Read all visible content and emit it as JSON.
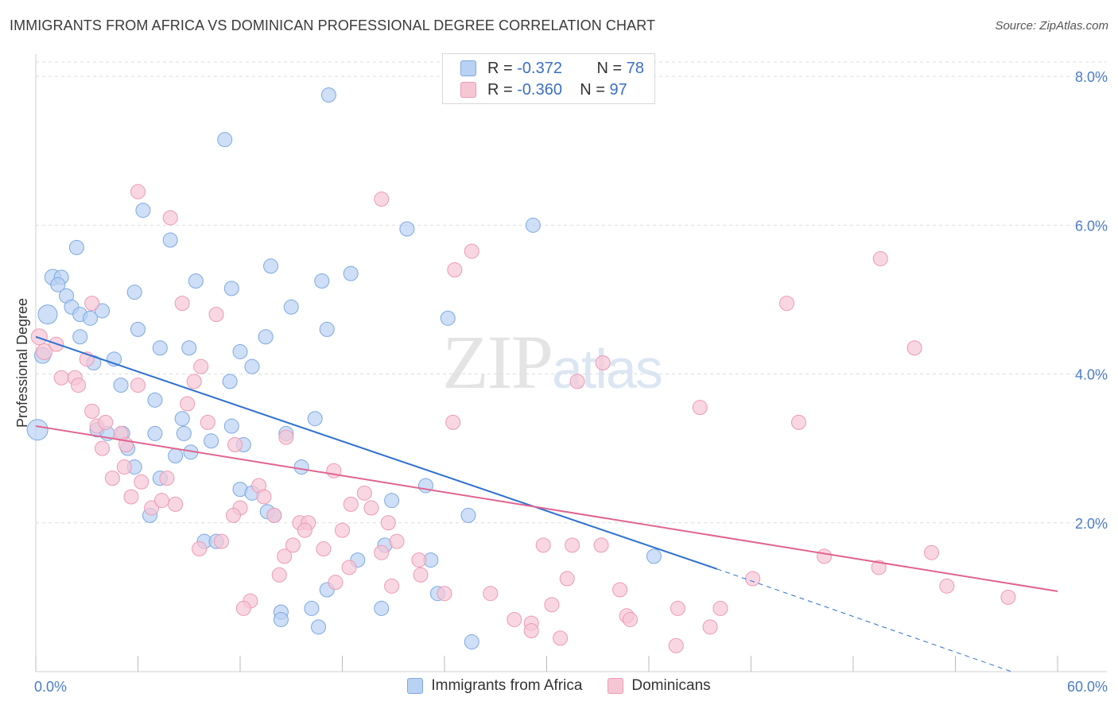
{
  "title": "IMMIGRANTS FROM AFRICA VS DOMINICAN PROFESSIONAL DEGREE CORRELATION CHART",
  "source": "Source: ZipAtlas.com",
  "watermark": {
    "zip": "ZIP",
    "atlas": "atlas"
  },
  "legend": {
    "rows": [
      {
        "r_label": "R =",
        "r_value": "-0.372",
        "n_label": "N =",
        "n_value": "78"
      },
      {
        "r_label": "R =",
        "r_value": "-0.360",
        "n_label": "N =",
        "n_value": "97"
      }
    ]
  },
  "bottom_legend": [
    "Immigrants from Africa",
    "Dominicans"
  ],
  "colors": {
    "blue_fill": "#b9d2f3",
    "blue_stroke": "#7ea8e0",
    "blue_line": "#2f6fd0",
    "pink_fill": "#f7c6d5",
    "pink_stroke": "#ec9ab4",
    "pink_line": "#e0648f",
    "grid": "#dedede",
    "axis_text": "#4a7cc9"
  },
  "chart_data": {
    "type": "scatter",
    "title": "IMMIGRANTS FROM AFRICA VS DOMINICAN PROFESSIONAL DEGREE CORRELATION CHART",
    "xlabel": "",
    "ylabel": "Professional Degree",
    "xlim": [
      0,
      60
    ],
    "ylim": [
      0,
      8.3
    ],
    "x_tick_labels": [
      "0.0%",
      "60.0%"
    ],
    "y_ticks": [
      2.0,
      4.0,
      6.0,
      8.0
    ],
    "y_tick_labels": [
      "2.0%",
      "4.0%",
      "6.0%",
      "8.0%"
    ],
    "grid": true,
    "series": [
      {
        "name": "Immigrants from Africa",
        "color": "#7ea8e0",
        "trend": {
          "x0": 0.0,
          "y0": 4.5,
          "x1": 40.0,
          "y1": 1.38,
          "dashed_to_x": 57.3,
          "dashed_to_y": 0.0
        },
        "points": [
          [
            0.1,
            3.25,
            26
          ],
          [
            0.7,
            4.8,
            24
          ],
          [
            0.4,
            4.25,
            20
          ],
          [
            1.0,
            5.3,
            20
          ],
          [
            1.5,
            5.3,
            18
          ],
          [
            1.3,
            5.2,
            18
          ],
          [
            1.8,
            5.05,
            18
          ],
          [
            2.1,
            4.9,
            18
          ],
          [
            2.6,
            4.8,
            18
          ],
          [
            3.2,
            4.75,
            18
          ],
          [
            3.9,
            4.85,
            18
          ],
          [
            2.6,
            4.5,
            18
          ],
          [
            3.4,
            4.15,
            18
          ],
          [
            4.6,
            4.2,
            18
          ],
          [
            2.4,
            5.7,
            18
          ],
          [
            6.3,
            6.2,
            18
          ],
          [
            7.9,
            5.8,
            18
          ],
          [
            5.8,
            5.1,
            18
          ],
          [
            6.0,
            4.6,
            18
          ],
          [
            7.3,
            4.35,
            18
          ],
          [
            9.4,
            5.25,
            18
          ],
          [
            9.0,
            4.35,
            18
          ],
          [
            8.6,
            3.4,
            18
          ],
          [
            7.0,
            3.65,
            18
          ],
          [
            5.0,
            3.85,
            18
          ],
          [
            3.6,
            3.25,
            18
          ],
          [
            5.1,
            3.2,
            18
          ],
          [
            5.8,
            2.75,
            18
          ],
          [
            7.0,
            3.2,
            18
          ],
          [
            8.7,
            3.2,
            18
          ],
          [
            8.2,
            2.9,
            18
          ],
          [
            9.1,
            2.95,
            18
          ],
          [
            7.3,
            2.6,
            18
          ],
          [
            4.2,
            3.2,
            18
          ],
          [
            11.4,
            3.9,
            18
          ],
          [
            11.1,
            7.15,
            18
          ],
          [
            11.5,
            5.15,
            18
          ],
          [
            12.0,
            4.3,
            18
          ],
          [
            12.7,
            4.1,
            18
          ],
          [
            11.5,
            3.3,
            18
          ],
          [
            10.3,
            3.1,
            18
          ],
          [
            12.2,
            3.05,
            18
          ],
          [
            13.5,
            4.5,
            18
          ],
          [
            13.8,
            5.45,
            18
          ],
          [
            15.0,
            4.9,
            18
          ],
          [
            16.8,
            5.25,
            18
          ],
          [
            17.1,
            4.6,
            18
          ],
          [
            18.5,
            5.35,
            18
          ],
          [
            17.2,
            7.75,
            18
          ],
          [
            21.8,
            5.95,
            18
          ],
          [
            29.2,
            6.0,
            18
          ],
          [
            24.2,
            4.75,
            18
          ],
          [
            14.7,
            3.2,
            18
          ],
          [
            16.4,
            3.4,
            18
          ],
          [
            15.6,
            2.75,
            18
          ],
          [
            12.0,
            2.45,
            18
          ],
          [
            12.7,
            2.4,
            18
          ],
          [
            13.6,
            2.15,
            18
          ],
          [
            14.0,
            2.1,
            18
          ],
          [
            20.9,
            2.3,
            18
          ],
          [
            22.9,
            2.5,
            18
          ],
          [
            25.4,
            2.1,
            18
          ],
          [
            6.7,
            2.1,
            18
          ],
          [
            9.9,
            1.75,
            18
          ],
          [
            10.6,
            1.75,
            18
          ],
          [
            20.5,
            1.7,
            18
          ],
          [
            18.9,
            1.5,
            18
          ],
          [
            23.2,
            1.5,
            18
          ],
          [
            17.1,
            1.1,
            18
          ],
          [
            20.3,
            0.85,
            18
          ],
          [
            23.6,
            1.05,
            18
          ],
          [
            14.4,
            0.8,
            18
          ],
          [
            14.4,
            0.7,
            18
          ],
          [
            16.2,
            0.85,
            18
          ],
          [
            16.6,
            0.6,
            18
          ],
          [
            25.6,
            0.4,
            18
          ],
          [
            36.3,
            1.55,
            18
          ],
          [
            5.4,
            3.0,
            18
          ]
        ]
      },
      {
        "name": "Dominicans",
        "color": "#ec9ab4",
        "trend": {
          "x0": 0.0,
          "y0": 3.3,
          "x1": 60.0,
          "y1": 1.08
        },
        "points": [
          [
            0.2,
            4.5,
            20
          ],
          [
            0.5,
            4.3,
            20
          ],
          [
            1.2,
            4.4,
            18
          ],
          [
            1.5,
            3.95,
            18
          ],
          [
            2.3,
            3.95,
            18
          ],
          [
            2.5,
            3.85,
            18
          ],
          [
            3.0,
            4.2,
            18
          ],
          [
            3.3,
            3.5,
            18
          ],
          [
            3.6,
            3.3,
            18
          ],
          [
            4.1,
            3.35,
            18
          ],
          [
            3.9,
            3.0,
            18
          ],
          [
            5.0,
            3.2,
            18
          ],
          [
            5.3,
            3.05,
            18
          ],
          [
            5.2,
            2.75,
            18
          ],
          [
            4.5,
            2.6,
            18
          ],
          [
            6.0,
            3.85,
            18
          ],
          [
            6.2,
            2.55,
            18
          ],
          [
            5.6,
            2.35,
            18
          ],
          [
            6.8,
            2.2,
            18
          ],
          [
            7.4,
            2.3,
            18
          ],
          [
            7.7,
            2.6,
            18
          ],
          [
            8.2,
            2.25,
            18
          ],
          [
            8.9,
            3.6,
            18
          ],
          [
            9.3,
            3.9,
            18
          ],
          [
            9.7,
            4.1,
            18
          ],
          [
            8.6,
            4.95,
            18
          ],
          [
            10.6,
            4.8,
            18
          ],
          [
            10.1,
            3.35,
            18
          ],
          [
            11.7,
            3.05,
            18
          ],
          [
            9.6,
            1.65,
            18
          ],
          [
            10.9,
            1.75,
            18
          ],
          [
            12.0,
            2.2,
            18
          ],
          [
            11.6,
            2.1,
            18
          ],
          [
            13.1,
            2.5,
            18
          ],
          [
            13.4,
            2.35,
            18
          ],
          [
            14.0,
            2.1,
            18
          ],
          [
            14.7,
            3.15,
            18
          ],
          [
            15.5,
            2.0,
            18
          ],
          [
            16.0,
            2.0,
            18
          ],
          [
            15.8,
            1.9,
            18
          ],
          [
            15.1,
            1.7,
            18
          ],
          [
            14.6,
            1.55,
            18
          ],
          [
            14.3,
            1.3,
            18
          ],
          [
            16.9,
            1.65,
            18
          ],
          [
            17.5,
            2.7,
            18
          ],
          [
            18.0,
            1.9,
            18
          ],
          [
            18.5,
            2.25,
            18
          ],
          [
            19.3,
            2.4,
            18
          ],
          [
            19.7,
            2.2,
            18
          ],
          [
            20.7,
            2.0,
            18
          ],
          [
            20.3,
            1.6,
            18
          ],
          [
            21.2,
            1.75,
            18
          ],
          [
            20.9,
            1.15,
            18
          ],
          [
            22.5,
            1.5,
            18
          ],
          [
            22.6,
            1.3,
            18
          ],
          [
            24.0,
            1.05,
            18
          ],
          [
            24.5,
            3.35,
            18
          ],
          [
            24.6,
            5.4,
            18
          ],
          [
            25.6,
            5.65,
            18
          ],
          [
            20.3,
            6.35,
            18
          ],
          [
            6.0,
            6.45,
            18
          ],
          [
            7.9,
            6.1,
            18
          ],
          [
            12.6,
            0.95,
            18
          ],
          [
            12.2,
            0.85,
            18
          ],
          [
            17.6,
            1.2,
            18
          ],
          [
            18.4,
            1.4,
            18
          ],
          [
            26.7,
            1.05,
            18
          ],
          [
            28.1,
            0.7,
            18
          ],
          [
            29.1,
            0.65,
            18
          ],
          [
            29.1,
            0.55,
            18
          ],
          [
            30.3,
            0.9,
            18
          ],
          [
            30.8,
            0.45,
            18
          ],
          [
            31.2,
            1.25,
            18
          ],
          [
            31.5,
            1.7,
            18
          ],
          [
            33.2,
            1.7,
            18
          ],
          [
            34.3,
            1.1,
            18
          ],
          [
            34.7,
            0.75,
            18
          ],
          [
            34.9,
            0.7,
            18
          ],
          [
            37.7,
            0.85,
            18
          ],
          [
            37.6,
            0.35,
            18
          ],
          [
            39.0,
            3.55,
            18
          ],
          [
            39.6,
            0.6,
            18
          ],
          [
            40.2,
            0.85,
            18
          ],
          [
            31.8,
            3.9,
            18
          ],
          [
            33.3,
            4.15,
            18
          ],
          [
            42.1,
            1.25,
            18
          ],
          [
            44.1,
            4.95,
            18
          ],
          [
            44.8,
            3.35,
            18
          ],
          [
            46.3,
            1.55,
            18
          ],
          [
            49.5,
            1.4,
            18
          ],
          [
            49.6,
            5.55,
            18
          ],
          [
            51.6,
            4.35,
            18
          ],
          [
            52.6,
            1.6,
            18
          ],
          [
            53.5,
            1.15,
            18
          ],
          [
            57.1,
            1.0,
            18
          ],
          [
            3.3,
            4.95,
            18
          ],
          [
            29.8,
            1.7,
            18
          ]
        ]
      }
    ]
  }
}
